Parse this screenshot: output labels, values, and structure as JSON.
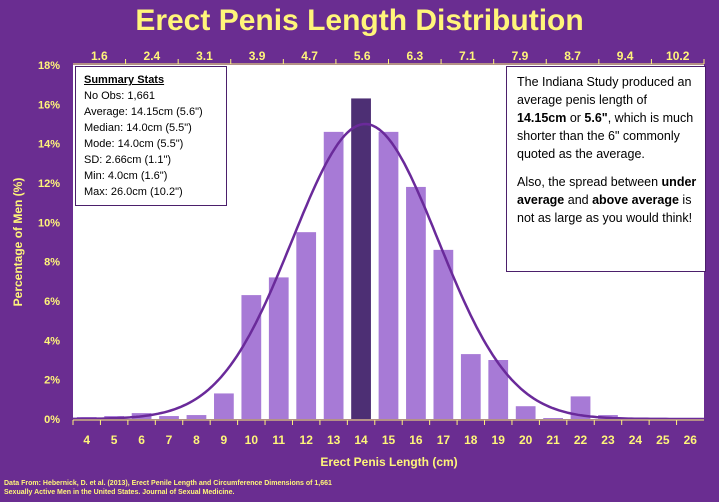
{
  "title": "Erect Penis Length Distribution",
  "colors": {
    "background": "#6a2d91",
    "accent_text": "#fff57a",
    "bar": "#a77ad6",
    "highlight_bar": "#4d2f74",
    "curve": "#6a2a9a",
    "plot_bg": "#ffffff"
  },
  "stats": {
    "heading": "Summary Stats",
    "lines": [
      "No Obs: 1,661",
      "Average:  14.15cm (5.6\")",
      "Median:  14.0cm (5.5\")",
      "Mode:  14.0cm (5.5\")",
      "SD:  2.66cm (1.1\")",
      "Min: 4.0cm (1.6\")",
      "Max: 26.0cm (10.2\")"
    ]
  },
  "note": {
    "p1_a": "The Indiana Study produced an average penis length of ",
    "p1_b": "14.15cm",
    "p1_c": "  or ",
    "p1_d": "5.6\"",
    "p1_e": ", which is much shorter than the 6\" commonly quoted as the average.",
    "p2_a": "Also, the spread between ",
    "p2_b": "under average",
    "p2_c": " and ",
    "p2_d": "above average",
    "p2_e": " is not as large as you would think!"
  },
  "source": {
    "line1": "Data From: Hebernick, D. et al. (2013), Erect Penile Length and Circumference Dimensions of 1,661",
    "line2": "Sexually Active Men in the United States. Journal of Sexual Medicine."
  },
  "chart_data": {
    "type": "bar",
    "xlabel": "Erect Penis Length (cm)",
    "ylabel": "Percentage of Men (%)",
    "categories": [
      "4",
      "5",
      "6",
      "7",
      "8",
      "9",
      "10",
      "11",
      "12",
      "13",
      "14",
      "15",
      "16",
      "17",
      "18",
      "19",
      "20",
      "21",
      "22",
      "23",
      "24",
      "25",
      "26"
    ],
    "values": [
      0.1,
      0.15,
      0.3,
      0.15,
      0.2,
      1.3,
      6.3,
      7.2,
      9.5,
      14.6,
      16.3,
      14.6,
      11.8,
      8.6,
      3.3,
      3.0,
      0.65,
      0.05,
      1.15,
      0.2,
      0.05,
      0.05,
      0.05
    ],
    "highlight_category": "14",
    "ylim": [
      0,
      18
    ],
    "yticks": [
      "0%",
      "2%",
      "4%",
      "6%",
      "8%",
      "10%",
      "12%",
      "14%",
      "16%",
      "18%"
    ],
    "top_axis_ticks": [
      "1.6",
      "2.4",
      "3.1",
      "3.9",
      "4.7",
      "5.6",
      "6.3",
      "7.1",
      "7.9",
      "8.7",
      "9.4",
      "10.2"
    ],
    "normal_curve": {
      "mean": 14.15,
      "sd": 2.66,
      "peak_pct": 15.0
    },
    "grid": false
  }
}
